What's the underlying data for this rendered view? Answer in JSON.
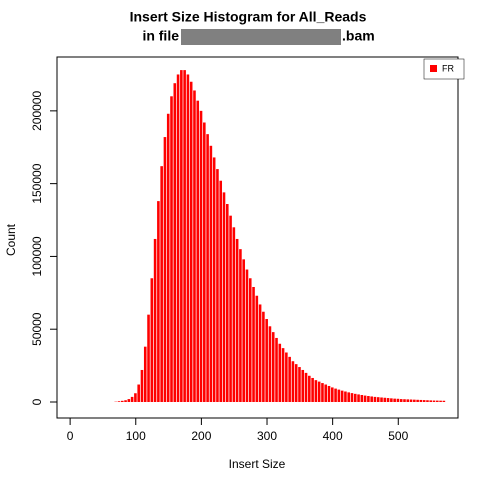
{
  "chart_data": {
    "type": "bar",
    "title": "Insert Size Histogram for All_Reads",
    "subtitle_prefix": "in file",
    "subtitle_suffix": ".bam",
    "x_label": "Insert Size",
    "y_label": "Count",
    "x": [
      70,
      75,
      80,
      85,
      90,
      95,
      100,
      105,
      110,
      115,
      120,
      125,
      130,
      135,
      140,
      145,
      150,
      155,
      160,
      165,
      170,
      175,
      180,
      185,
      190,
      195,
      200,
      205,
      210,
      215,
      220,
      225,
      230,
      235,
      240,
      245,
      250,
      255,
      260,
      265,
      270,
      275,
      280,
      285,
      290,
      295,
      300,
      305,
      310,
      315,
      320,
      325,
      330,
      335,
      340,
      345,
      350,
      355,
      360,
      365,
      370,
      375,
      380,
      385,
      390,
      395,
      400,
      405,
      410,
      415,
      420,
      425,
      430,
      435,
      440,
      445,
      450,
      455,
      460,
      465,
      470,
      475,
      480,
      485,
      490,
      495,
      500,
      505,
      510,
      515,
      520,
      525,
      530,
      535,
      540,
      545,
      550,
      555,
      560,
      565,
      570
    ],
    "series": [
      {
        "name": "FR",
        "color": "#ff0000",
        "values": [
          200,
          500,
          800,
          1200,
          2000,
          3500,
          6000,
          12000,
          22000,
          38000,
          60000,
          85000,
          112000,
          138000,
          162000,
          182000,
          198000,
          210000,
          219000,
          225000,
          228000,
          228000,
          225000,
          220000,
          214000,
          207000,
          200000,
          192000,
          184000,
          176000,
          168000,
          160000,
          152000,
          144000,
          136000,
          128000,
          120000,
          112000,
          105000,
          98000,
          91000,
          85000,
          79000,
          73000,
          67000,
          62000,
          57000,
          52000,
          48000,
          44000,
          40000,
          37000,
          34000,
          31000,
          28000,
          26000,
          24000,
          22000,
          20000,
          18000,
          16500,
          15000,
          14000,
          13000,
          12000,
          11000,
          10000,
          9200,
          8500,
          7800,
          7200,
          6600,
          6100,
          5600,
          5200,
          4800,
          4400,
          4100,
          3800,
          3500,
          3300,
          3100,
          2900,
          2700,
          2500,
          2300,
          2200,
          2000,
          1900,
          1800,
          1700,
          1600,
          1500,
          1400,
          1300,
          1200,
          1100,
          1000,
          950,
          900,
          850
        ]
      }
    ],
    "xlim": [
      -20,
      591
    ],
    "ylim": [
      -11000,
      237000
    ],
    "xticks": [
      0,
      100,
      200,
      300,
      400,
      500
    ],
    "yticks": [
      0,
      50000,
      100000,
      150000,
      200000
    ],
    "legend": "top right"
  }
}
